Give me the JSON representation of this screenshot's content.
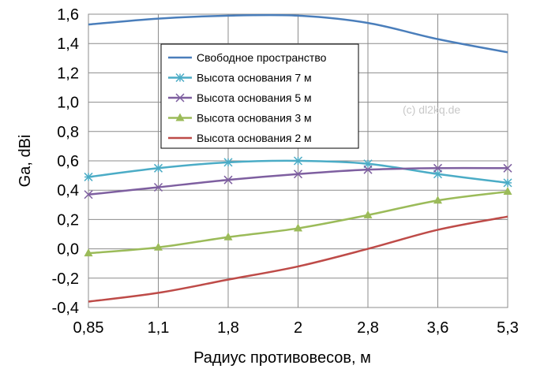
{
  "chart_data": {
    "type": "line",
    "categories": [
      "0,85",
      "1,1",
      "1,8",
      "2",
      "2,8",
      "3,6",
      "5,3"
    ],
    "xlabel": "Радиус противовесов, м",
    "ylabel": "Ga, dBi",
    "ylim": [
      -0.4,
      1.6
    ],
    "yticks": [
      "-0,4",
      "-0,2",
      "0,0",
      "0,2",
      "0,4",
      "0,6",
      "0,8",
      "1,0",
      "1,2",
      "1,4",
      "1,6"
    ],
    "grid": true,
    "legend_position": "top-center",
    "watermark": "(c) dl2kq.de",
    "series": [
      {
        "name": "Свободное пространство",
        "color": "#4a7ebb",
        "marker": "none",
        "values": [
          1.53,
          1.57,
          1.59,
          1.59,
          1.54,
          1.43,
          1.34
        ]
      },
      {
        "name": "Высота основания 7 м",
        "color": "#4bacc6",
        "marker": "asterisk",
        "values": [
          0.49,
          0.55,
          0.59,
          0.6,
          0.58,
          0.51,
          0.45
        ]
      },
      {
        "name": "Высота основания 5 м",
        "color": "#7e5fa0",
        "marker": "x",
        "values": [
          0.37,
          0.42,
          0.47,
          0.51,
          0.54,
          0.55,
          0.55
        ]
      },
      {
        "name": "Высота основания 3 м",
        "color": "#9bbb59",
        "marker": "triangle",
        "values": [
          -0.03,
          0.01,
          0.08,
          0.14,
          0.23,
          0.33,
          0.39
        ]
      },
      {
        "name": "Высота основания 2 м",
        "color": "#be4b48",
        "marker": "none",
        "values": [
          -0.36,
          -0.3,
          -0.21,
          -0.12,
          0.0,
          0.13,
          0.22
        ]
      }
    ]
  }
}
